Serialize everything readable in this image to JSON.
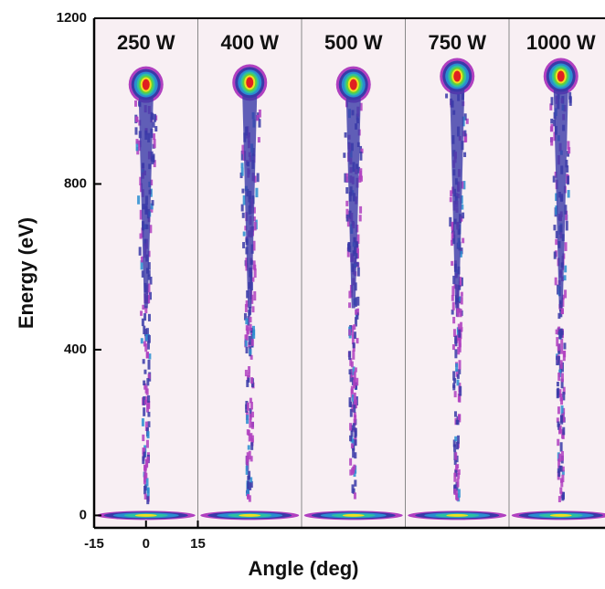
{
  "chart_data": {
    "type": "ieadf",
    "y_label": "Energy (eV)",
    "x_label": "Angle (deg)",
    "ylim": [
      -30,
      1200
    ],
    "yticks": [
      0,
      400,
      800,
      1200
    ],
    "xlim": [
      -15,
      15
    ],
    "xticks": [
      -15,
      0,
      15
    ],
    "panels": [
      {
        "name": "250 W",
        "peak_energy": 1040
      },
      {
        "name": "400 W",
        "peak_energy": 1045
      },
      {
        "name": "500 W",
        "peak_energy": 1040
      },
      {
        "name": "750 W",
        "peak_energy": 1060
      },
      {
        "name": "1000 W",
        "peak_energy": 1060
      }
    ],
    "low_peak_energy": 0
  }
}
